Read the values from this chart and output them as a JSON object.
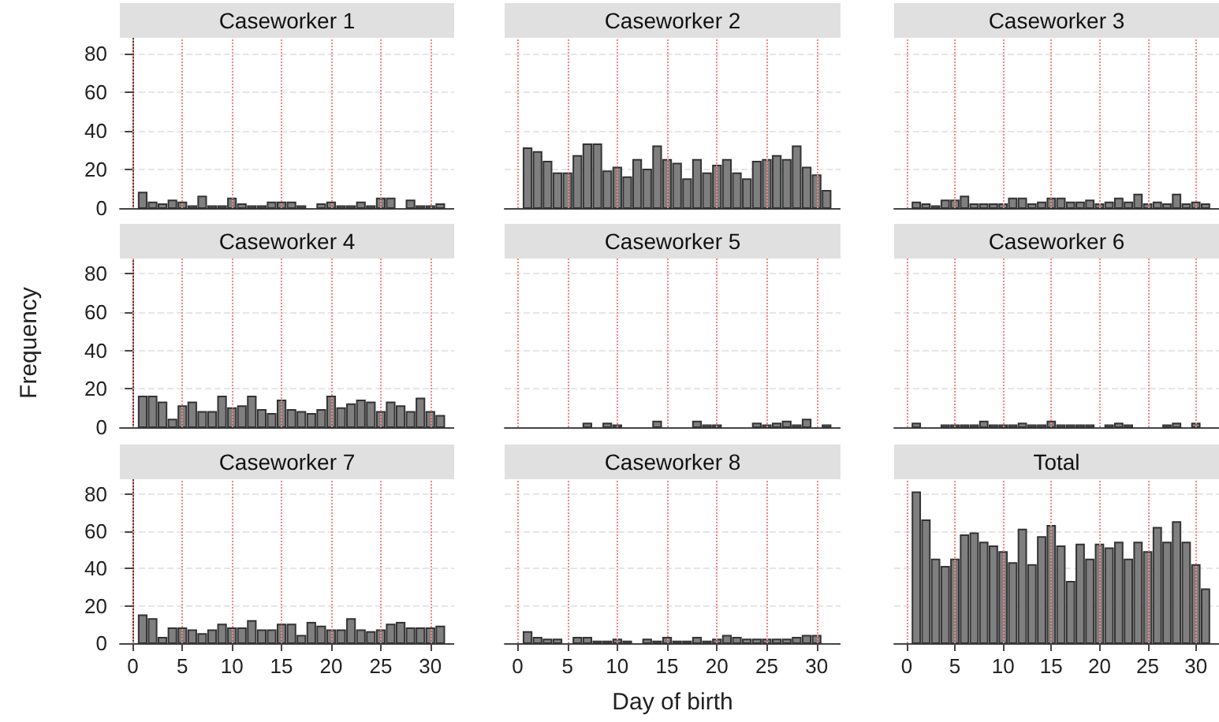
{
  "chart_data": [
    {
      "type": "histogram",
      "title": "Caseworker 1",
      "bins": [
        0.5,
        1.5,
        2.5,
        3.5,
        4.5,
        5.5,
        6.5,
        7.5,
        8.5,
        9.5,
        10.5,
        11.5,
        12.5,
        13.5,
        14.5,
        15.5,
        16.5,
        17.5,
        18.5,
        19.5,
        20.5,
        21.5,
        22.5,
        23.5,
        24.5,
        25.5,
        26.5,
        27.5,
        28.5,
        29.5,
        30.5,
        31.5
      ],
      "values": [
        8,
        3,
        2,
        4,
        3,
        1,
        6,
        1,
        1,
        5,
        2,
        1,
        1,
        3,
        3,
        3,
        1,
        0,
        2,
        3,
        1,
        1,
        3,
        1,
        5,
        5,
        0,
        4,
        1,
        1,
        2
      ],
      "color": "#7f7f7f",
      "xlim": [
        -1.3,
        32.4
      ],
      "ylim": [
        0,
        88
      ],
      "xticks": [
        0,
        5,
        10,
        15,
        20,
        25,
        30
      ],
      "yticks": [
        0,
        20,
        40,
        60,
        80
      ],
      "grid": "y",
      "tick_labels": "y",
      "ref_lines": [
        {
          "axis": "x",
          "value": 0,
          "color": "#ff8080",
          "line_style": "dotted"
        },
        {
          "axis": "x",
          "value": 5,
          "color": "#ff8080",
          "line_style": "dotted"
        },
        {
          "axis": "x",
          "value": 10,
          "color": "#ff8080",
          "line_style": "dotted"
        },
        {
          "axis": "x",
          "value": 15,
          "color": "#ff8080",
          "line_style": "dotted"
        },
        {
          "axis": "x",
          "value": 20,
          "color": "#ff8080",
          "line_style": "dotted"
        },
        {
          "axis": "x",
          "value": 25,
          "color": "#ff8080",
          "line_style": "dotted"
        },
        {
          "axis": "x",
          "value": 30,
          "color": "#ff8080",
          "line_style": "dotted"
        }
      ]
    },
    {
      "type": "histogram",
      "title": "Caseworker 2",
      "bins": [
        0.5,
        1.5,
        2.5,
        3.5,
        4.5,
        5.5,
        6.5,
        7.5,
        8.5,
        9.5,
        10.5,
        11.5,
        12.5,
        13.5,
        14.5,
        15.5,
        16.5,
        17.5,
        18.5,
        19.5,
        20.5,
        21.5,
        22.5,
        23.5,
        24.5,
        25.5,
        26.5,
        27.5,
        28.5,
        29.5,
        30.5,
        31.5
      ],
      "values": [
        31,
        29,
        24,
        18,
        18,
        27,
        33,
        33,
        19,
        21,
        16,
        25,
        20,
        32,
        25,
        23,
        15,
        25,
        18,
        22,
        25,
        18,
        15,
        24,
        25,
        27,
        25,
        32,
        21,
        17,
        9
      ],
      "color": "#7f7f7f",
      "xlim": [
        -1.3,
        32.4
      ],
      "ylim": [
        0,
        88
      ],
      "xticks": [
        0,
        5,
        10,
        15,
        20,
        25,
        30
      ],
      "yticks": [
        0,
        20,
        40,
        60,
        80
      ],
      "grid": "y",
      "tick_labels": false,
      "ref_lines": [
        {
          "axis": "x",
          "value": 0,
          "color": "#ff8080",
          "line_style": "dotted"
        },
        {
          "axis": "x",
          "value": 5,
          "color": "#ff8080",
          "line_style": "dotted"
        },
        {
          "axis": "x",
          "value": 10,
          "color": "#ff8080",
          "line_style": "dotted"
        },
        {
          "axis": "x",
          "value": 15,
          "color": "#ff8080",
          "line_style": "dotted"
        },
        {
          "axis": "x",
          "value": 20,
          "color": "#ff8080",
          "line_style": "dotted"
        },
        {
          "axis": "x",
          "value": 25,
          "color": "#ff8080",
          "line_style": "dotted"
        },
        {
          "axis": "x",
          "value": 30,
          "color": "#ff8080",
          "line_style": "dotted"
        }
      ]
    },
    {
      "type": "histogram",
      "title": "Caseworker 3",
      "bins": [
        0.5,
        1.5,
        2.5,
        3.5,
        4.5,
        5.5,
        6.5,
        7.5,
        8.5,
        9.5,
        10.5,
        11.5,
        12.5,
        13.5,
        14.5,
        15.5,
        16.5,
        17.5,
        18.5,
        19.5,
        20.5,
        21.5,
        22.5,
        23.5,
        24.5,
        25.5,
        26.5,
        27.5,
        28.5,
        29.5,
        30.5,
        31.5
      ],
      "values": [
        3,
        2,
        1,
        4,
        4,
        6,
        2,
        2,
        2,
        2,
        5,
        5,
        2,
        3,
        5,
        5,
        3,
        3,
        4,
        2,
        3,
        5,
        3,
        7,
        2,
        3,
        2,
        7,
        2,
        3,
        2
      ],
      "color": "#7f7f7f",
      "xlim": [
        -1.3,
        32.4
      ],
      "ylim": [
        0,
        88
      ],
      "xticks": [
        0,
        5,
        10,
        15,
        20,
        25,
        30
      ],
      "yticks": [
        0,
        20,
        40,
        60,
        80
      ],
      "grid": "y",
      "tick_labels": false,
      "ref_lines": [
        {
          "axis": "x",
          "value": 0,
          "color": "#ff8080",
          "line_style": "dotted"
        },
        {
          "axis": "x",
          "value": 5,
          "color": "#ff8080",
          "line_style": "dotted"
        },
        {
          "axis": "x",
          "value": 10,
          "color": "#ff8080",
          "line_style": "dotted"
        },
        {
          "axis": "x",
          "value": 15,
          "color": "#ff8080",
          "line_style": "dotted"
        },
        {
          "axis": "x",
          "value": 20,
          "color": "#ff8080",
          "line_style": "dotted"
        },
        {
          "axis": "x",
          "value": 25,
          "color": "#ff8080",
          "line_style": "dotted"
        },
        {
          "axis": "x",
          "value": 30,
          "color": "#ff8080",
          "line_style": "dotted"
        }
      ]
    },
    {
      "type": "histogram",
      "title": "Caseworker 4",
      "ylabel": "Frequency",
      "bins": [
        0.5,
        1.5,
        2.5,
        3.5,
        4.5,
        5.5,
        6.5,
        7.5,
        8.5,
        9.5,
        10.5,
        11.5,
        12.5,
        13.5,
        14.5,
        15.5,
        16.5,
        17.5,
        18.5,
        19.5,
        20.5,
        21.5,
        22.5,
        23.5,
        24.5,
        25.5,
        26.5,
        27.5,
        28.5,
        29.5,
        30.5,
        31.5
      ],
      "values": [
        16,
        16,
        13,
        4,
        11,
        13,
        8,
        8,
        16,
        10,
        11,
        16,
        9,
        7,
        14,
        9,
        8,
        7,
        9,
        16,
        10,
        12,
        14,
        13,
        8,
        13,
        11,
        8,
        15,
        8,
        6
      ],
      "color": "#7f7f7f",
      "xlim": [
        -1.3,
        32.4
      ],
      "ylim": [
        0,
        88
      ],
      "xticks": [
        0,
        5,
        10,
        15,
        20,
        25,
        30
      ],
      "yticks": [
        0,
        20,
        40,
        60,
        80
      ],
      "grid": "y",
      "tick_labels": "y",
      "ref_lines": [
        {
          "axis": "x",
          "value": 0,
          "color": "#ff8080",
          "line_style": "dotted"
        },
        {
          "axis": "x",
          "value": 5,
          "color": "#ff8080",
          "line_style": "dotted"
        },
        {
          "axis": "x",
          "value": 10,
          "color": "#ff8080",
          "line_style": "dotted"
        },
        {
          "axis": "x",
          "value": 15,
          "color": "#ff8080",
          "line_style": "dotted"
        },
        {
          "axis": "x",
          "value": 20,
          "color": "#ff8080",
          "line_style": "dotted"
        },
        {
          "axis": "x",
          "value": 25,
          "color": "#ff8080",
          "line_style": "dotted"
        },
        {
          "axis": "x",
          "value": 30,
          "color": "#ff8080",
          "line_style": "dotted"
        }
      ]
    },
    {
      "type": "histogram",
      "title": "Caseworker 5",
      "bins": [
        0.5,
        1.5,
        2.5,
        3.5,
        4.5,
        5.5,
        6.5,
        7.5,
        8.5,
        9.5,
        10.5,
        11.5,
        12.5,
        13.5,
        14.5,
        15.5,
        16.5,
        17.5,
        18.5,
        19.5,
        20.5,
        21.5,
        22.5,
        23.5,
        24.5,
        25.5,
        26.5,
        27.5,
        28.5,
        29.5,
        30.5,
        31.5
      ],
      "values": [
        0,
        0,
        0,
        0,
        0,
        0,
        2,
        0,
        2,
        1,
        0,
        0,
        0,
        3,
        0,
        0,
        0,
        3,
        1,
        1,
        0,
        0,
        0,
        2,
        1,
        2,
        3,
        1,
        4,
        0,
        1
      ],
      "color": "#7f7f7f",
      "xlim": [
        -1.3,
        32.4
      ],
      "ylim": [
        0,
        88
      ],
      "xticks": [
        0,
        5,
        10,
        15,
        20,
        25,
        30
      ],
      "yticks": [
        0,
        20,
        40,
        60,
        80
      ],
      "grid": "y",
      "tick_labels": false,
      "ref_lines": [
        {
          "axis": "x",
          "value": 0,
          "color": "#ff8080",
          "line_style": "dotted"
        },
        {
          "axis": "x",
          "value": 5,
          "color": "#ff8080",
          "line_style": "dotted"
        },
        {
          "axis": "x",
          "value": 10,
          "color": "#ff8080",
          "line_style": "dotted"
        },
        {
          "axis": "x",
          "value": 15,
          "color": "#ff8080",
          "line_style": "dotted"
        },
        {
          "axis": "x",
          "value": 20,
          "color": "#ff8080",
          "line_style": "dotted"
        },
        {
          "axis": "x",
          "value": 25,
          "color": "#ff8080",
          "line_style": "dotted"
        },
        {
          "axis": "x",
          "value": 30,
          "color": "#ff8080",
          "line_style": "dotted"
        }
      ]
    },
    {
      "type": "histogram",
      "title": "Caseworker 6",
      "bins": [
        0.5,
        1.5,
        2.5,
        3.5,
        4.5,
        5.5,
        6.5,
        7.5,
        8.5,
        9.5,
        10.5,
        11.5,
        12.5,
        13.5,
        14.5,
        15.5,
        16.5,
        17.5,
        18.5,
        19.5,
        20.5,
        21.5,
        22.5,
        23.5,
        24.5,
        25.5,
        26.5,
        27.5,
        28.5,
        29.5,
        30.5,
        31.5
      ],
      "values": [
        2,
        0,
        0,
        1,
        1,
        1,
        1,
        3,
        1,
        1,
        1,
        2,
        1,
        1,
        3,
        1,
        1,
        1,
        1,
        0,
        1,
        2,
        1,
        0,
        0,
        0,
        1,
        2,
        0,
        2,
        0
      ],
      "color": "#7f7f7f",
      "xlim": [
        -1.3,
        32.4
      ],
      "ylim": [
        0,
        88
      ],
      "xticks": [
        0,
        5,
        10,
        15,
        20,
        25,
        30
      ],
      "yticks": [
        0,
        20,
        40,
        60,
        80
      ],
      "grid": "y",
      "tick_labels": false,
      "ref_lines": [
        {
          "axis": "x",
          "value": 0,
          "color": "#ff8080",
          "line_style": "dotted"
        },
        {
          "axis": "x",
          "value": 5,
          "color": "#ff8080",
          "line_style": "dotted"
        },
        {
          "axis": "x",
          "value": 10,
          "color": "#ff8080",
          "line_style": "dotted"
        },
        {
          "axis": "x",
          "value": 15,
          "color": "#ff8080",
          "line_style": "dotted"
        },
        {
          "axis": "x",
          "value": 20,
          "color": "#ff8080",
          "line_style": "dotted"
        },
        {
          "axis": "x",
          "value": 25,
          "color": "#ff8080",
          "line_style": "dotted"
        },
        {
          "axis": "x",
          "value": 30,
          "color": "#ff8080",
          "line_style": "dotted"
        }
      ]
    },
    {
      "type": "histogram",
      "title": "Caseworker 7",
      "bins": [
        0.5,
        1.5,
        2.5,
        3.5,
        4.5,
        5.5,
        6.5,
        7.5,
        8.5,
        9.5,
        10.5,
        11.5,
        12.5,
        13.5,
        14.5,
        15.5,
        16.5,
        17.5,
        18.5,
        19.5,
        20.5,
        21.5,
        22.5,
        23.5,
        24.5,
        25.5,
        26.5,
        27.5,
        28.5,
        29.5,
        30.5,
        31.5
      ],
      "values": [
        15,
        13,
        3,
        8,
        8,
        7,
        5,
        7,
        10,
        8,
        8,
        12,
        7,
        7,
        10,
        10,
        4,
        11,
        9,
        7,
        7,
        13,
        7,
        6,
        7,
        10,
        11,
        8,
        8,
        8,
        9
      ],
      "color": "#7f7f7f",
      "xlim": [
        -1.3,
        32.4
      ],
      "ylim": [
        0,
        88
      ],
      "xticks": [
        0,
        5,
        10,
        15,
        20,
        25,
        30
      ],
      "yticks": [
        0,
        20,
        40,
        60,
        80
      ],
      "grid": "y",
      "ref_lines": [
        {
          "axis": "x",
          "value": 0,
          "color": "#ff8080",
          "line_style": "dotted"
        },
        {
          "axis": "x",
          "value": 5,
          "color": "#ff8080",
          "line_style": "dotted"
        },
        {
          "axis": "x",
          "value": 10,
          "color": "#ff8080",
          "line_style": "dotted"
        },
        {
          "axis": "x",
          "value": 15,
          "color": "#ff8080",
          "line_style": "dotted"
        },
        {
          "axis": "x",
          "value": 20,
          "color": "#ff8080",
          "line_style": "dotted"
        },
        {
          "axis": "x",
          "value": 25,
          "color": "#ff8080",
          "line_style": "dotted"
        },
        {
          "axis": "x",
          "value": 30,
          "color": "#ff8080",
          "line_style": "dotted"
        }
      ]
    },
    {
      "type": "histogram",
      "title": "Caseworker 8",
      "xlabel": "Day of birth",
      "bins": [
        0.5,
        1.5,
        2.5,
        3.5,
        4.5,
        5.5,
        6.5,
        7.5,
        8.5,
        9.5,
        10.5,
        11.5,
        12.5,
        13.5,
        14.5,
        15.5,
        16.5,
        17.5,
        18.5,
        19.5,
        20.5,
        21.5,
        22.5,
        23.5,
        24.5,
        25.5,
        26.5,
        27.5,
        28.5,
        29.5,
        30.5,
        31.5
      ],
      "values": [
        6,
        3,
        2,
        2,
        0,
        3,
        3,
        1,
        1,
        2,
        1,
        0,
        2,
        1,
        3,
        1,
        1,
        3,
        1,
        2,
        4,
        3,
        2,
        2,
        2,
        2,
        2,
        3,
        4,
        4,
        0
      ],
      "color": "#7f7f7f",
      "xlim": [
        -1.3,
        32.4
      ],
      "ylim": [
        0,
        88
      ],
      "xticks": [
        0,
        5,
        10,
        15,
        20,
        25,
        30
      ],
      "yticks": [
        0,
        20,
        40,
        60,
        80
      ],
      "grid": "y",
      "tick_labels": "x",
      "ref_lines": [
        {
          "axis": "x",
          "value": 0,
          "color": "#ff8080",
          "line_style": "dotted"
        },
        {
          "axis": "x",
          "value": 5,
          "color": "#ff8080",
          "line_style": "dotted"
        },
        {
          "axis": "x",
          "value": 10,
          "color": "#ff8080",
          "line_style": "dotted"
        },
        {
          "axis": "x",
          "value": 15,
          "color": "#ff8080",
          "line_style": "dotted"
        },
        {
          "axis": "x",
          "value": 20,
          "color": "#ff8080",
          "line_style": "dotted"
        },
        {
          "axis": "x",
          "value": 25,
          "color": "#ff8080",
          "line_style": "dotted"
        },
        {
          "axis": "x",
          "value": 30,
          "color": "#ff8080",
          "line_style": "dotted"
        }
      ]
    },
    {
      "type": "histogram",
      "title": "Total",
      "bins": [
        0.5,
        1.5,
        2.5,
        3.5,
        4.5,
        5.5,
        6.5,
        7.5,
        8.5,
        9.5,
        10.5,
        11.5,
        12.5,
        13.5,
        14.5,
        15.5,
        16.5,
        17.5,
        18.5,
        19.5,
        20.5,
        21.5,
        22.5,
        23.5,
        24.5,
        25.5,
        26.5,
        27.5,
        28.5,
        29.5,
        30.5,
        31.5
      ],
      "values": [
        81,
        66,
        45,
        41,
        45,
        58,
        59,
        54,
        52,
        49,
        43,
        61,
        42,
        57,
        63,
        52,
        33,
        53,
        45,
        53,
        51,
        54,
        45,
        54,
        49,
        62,
        54,
        65,
        54,
        42,
        29
      ],
      "color": "#7f7f7f",
      "xlim": [
        -1.3,
        32.4
      ],
      "ylim": [
        0,
        88
      ],
      "xticks": [
        0,
        5,
        10,
        15,
        20,
        25,
        30
      ],
      "yticks": [
        0,
        20,
        40,
        60,
        80
      ],
      "grid": "y",
      "tick_labels": "x",
      "ref_lines": [
        {
          "axis": "x",
          "value": 0,
          "color": "#ff8080",
          "line_style": "dotted"
        },
        {
          "axis": "x",
          "value": 5,
          "color": "#ff8080",
          "line_style": "dotted"
        },
        {
          "axis": "x",
          "value": 10,
          "color": "#ff8080",
          "line_style": "dotted"
        },
        {
          "axis": "x",
          "value": 15,
          "color": "#ff8080",
          "line_style": "dotted"
        },
        {
          "axis": "x",
          "value": 20,
          "color": "#ff8080",
          "line_style": "dotted"
        },
        {
          "axis": "x",
          "value": 25,
          "color": "#ff8080",
          "line_style": "dotted"
        },
        {
          "axis": "x",
          "value": 30,
          "color": "#ff8080",
          "line_style": "dotted"
        }
      ]
    }
  ]
}
